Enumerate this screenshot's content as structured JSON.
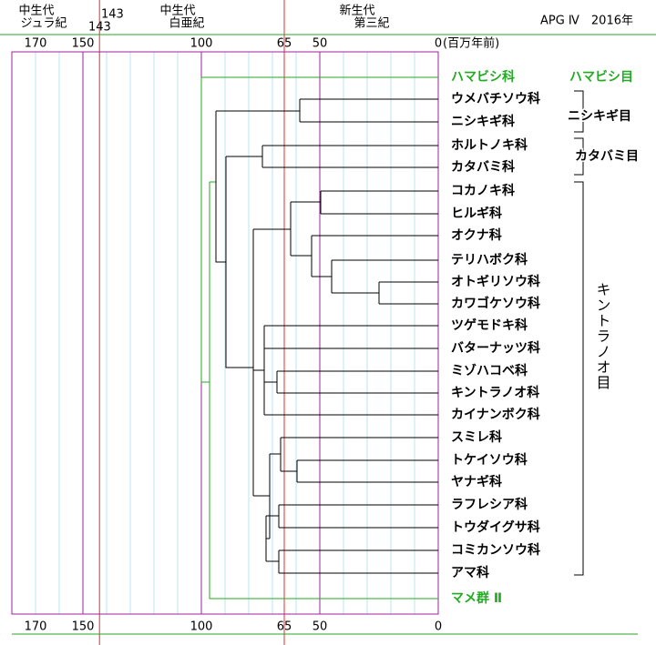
{
  "header": {
    "eras": [
      {
        "era": "中生代",
        "period": "ジュラ紀"
      },
      {
        "era": "中生代",
        "period": "白亜紀"
      },
      {
        "era": "新生代",
        "period": "第三紀"
      }
    ],
    "boundary": 143,
    "boundary_color": "#e03030",
    "source": "APG Ⅳ　2016年"
  },
  "axis": {
    "ticks": [
      170,
      150,
      100,
      65,
      50,
      0
    ],
    "tick_colors": [
      "#b8e4f4",
      "#a020a0",
      "#a020a0",
      "#e03030",
      "#a020a0",
      "#a020a0"
    ],
    "unit": "(百万年前)"
  },
  "leaves": [
    {
      "label": "ハマビシ科",
      "color": "#22aa22"
    },
    {
      "label": "ウメバチソウ科",
      "color": "#000000"
    },
    {
      "label": "ニシキギ科",
      "color": "#000000"
    },
    {
      "label": "ホルトノキ科",
      "color": "#000000"
    },
    {
      "label": "カタバミ科",
      "color": "#000000"
    },
    {
      "label": "コカノキ科",
      "color": "#000000"
    },
    {
      "label": "ヒルギ科",
      "color": "#000000"
    },
    {
      "label": "オクナ科",
      "color": "#000000"
    },
    {
      "label": "テリハボク科",
      "color": "#000000"
    },
    {
      "label": "オトギリソウ科",
      "color": "#000000"
    },
    {
      "label": "カワゴケソウ科",
      "color": "#000000"
    },
    {
      "label": "ツゲモドキ科",
      "color": "#000000"
    },
    {
      "label": "バターナッツ科",
      "color": "#000000"
    },
    {
      "label": "ミゾハコベ科",
      "color": "#000000"
    },
    {
      "label": "キントラノオ科",
      "color": "#000000"
    },
    {
      "label": "カイナンボク科",
      "color": "#000000"
    },
    {
      "label": "スミレ科",
      "color": "#000000"
    },
    {
      "label": "トケイソウ科",
      "color": "#000000"
    },
    {
      "label": "ヤナギ科",
      "color": "#000000"
    },
    {
      "label": "ラフレシア科",
      "color": "#000000"
    },
    {
      "label": "トウダイグサ科",
      "color": "#000000"
    },
    {
      "label": "コミカンソウ科",
      "color": "#000000"
    },
    {
      "label": "アマ科",
      "color": "#000000"
    },
    {
      "label": "マメ群 Ⅱ",
      "color": "#22aa22"
    }
  ],
  "orders": [
    {
      "label": "ハマビシ目",
      "color": "#22aa22"
    },
    {
      "label": "ニシキギ目",
      "color": "#000000"
    },
    {
      "label": "カタバミ目",
      "color": "#000000"
    },
    {
      "label": "キントラノオ目",
      "color": "#000000"
    }
  ]
}
